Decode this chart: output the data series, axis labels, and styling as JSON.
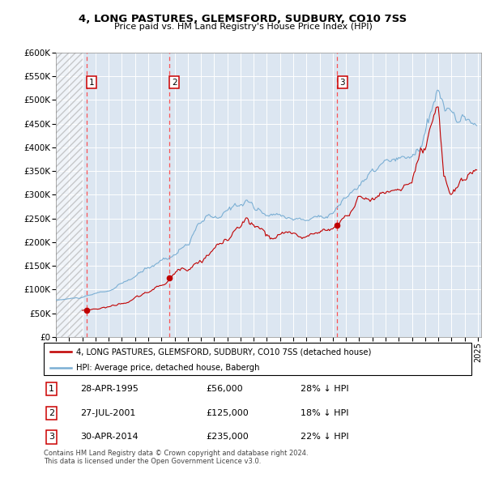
{
  "title": "4, LONG PASTURES, GLEMSFORD, SUDBURY, CO10 7SS",
  "subtitle": "Price paid vs. HM Land Registry's House Price Index (HPI)",
  "ylim": [
    0,
    600000
  ],
  "yticks": [
    0,
    50000,
    100000,
    150000,
    200000,
    250000,
    300000,
    350000,
    400000,
    450000,
    500000,
    550000,
    600000
  ],
  "xlim_start": 1993.0,
  "xlim_end": 2025.25,
  "hpi_color": "#7bafd4",
  "price_color": "#c00000",
  "sale_dates": [
    1995.32,
    2001.57,
    2014.33
  ],
  "sale_prices": [
    56000,
    125000,
    235000
  ],
  "sale_labels": [
    "1",
    "2",
    "3"
  ],
  "legend_label_price": "4, LONG PASTURES, GLEMSFORD, SUDBURY, CO10 7SS (detached house)",
  "legend_label_hpi": "HPI: Average price, detached house, Babergh",
  "table_data": [
    [
      "1",
      "28-APR-1995",
      "£56,000",
      "28% ↓ HPI"
    ],
    [
      "2",
      "27-JUL-2001",
      "£125,000",
      "18% ↓ HPI"
    ],
    [
      "3",
      "30-APR-2014",
      "£235,000",
      "22% ↓ HPI"
    ]
  ],
  "footer": "Contains HM Land Registry data © Crown copyright and database right 2024.\nThis data is licensed under the Open Government Licence v3.0."
}
